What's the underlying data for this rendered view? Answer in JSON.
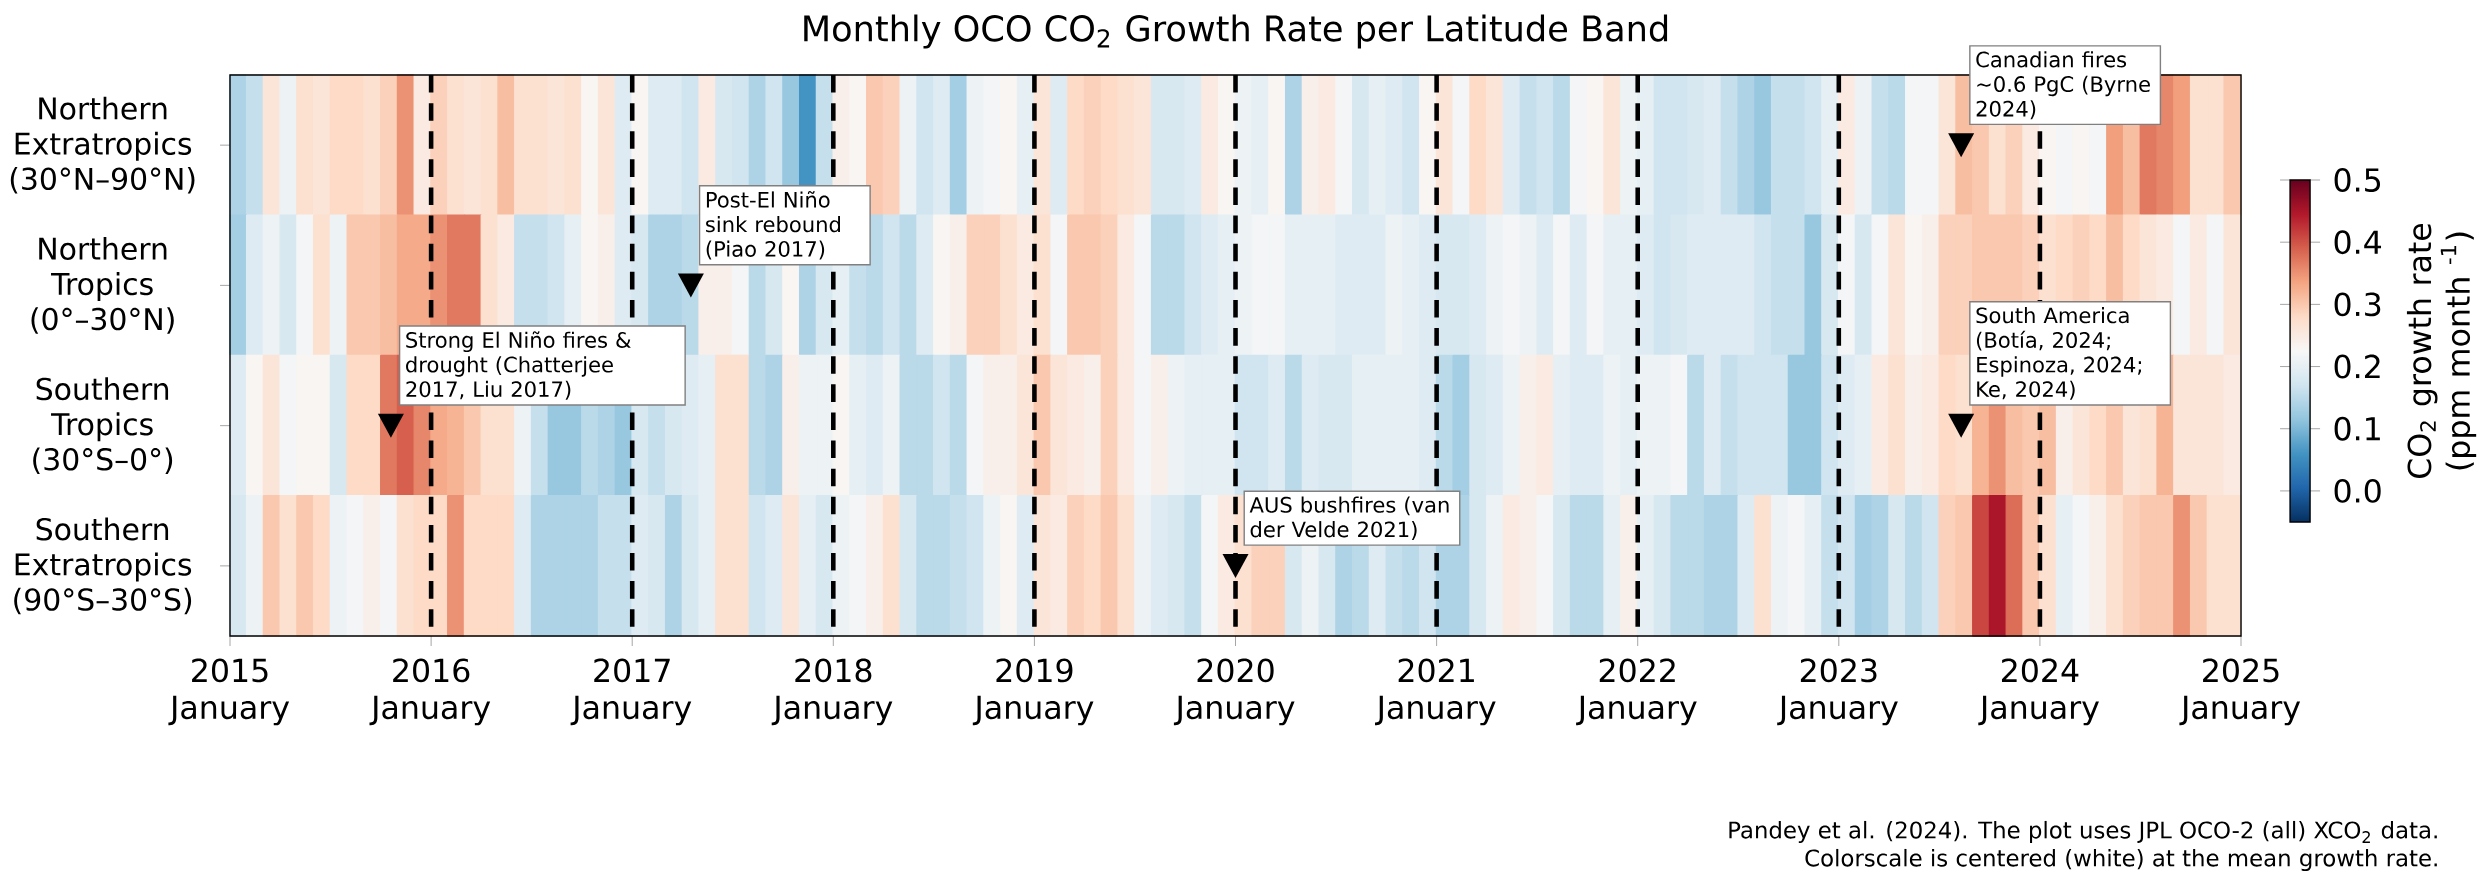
{
  "chart_data": {
    "type": "heatmap",
    "title": "Monthly OCO CO$_{2}$ Growth Rate per Latitude Band",
    "clabel": "CO$_{2}$ growth rate (ppm month $^{-1}$)",
    "x": [
      "2015-01-16",
      "2015-02-16",
      "2015-03-16",
      "2015-04-16",
      "2015-05-16",
      "2015-06-16",
      "2015-07-16",
      "2015-08-16",
      "2015-09-16",
      "2015-10-16",
      "2015-11-16",
      "2015-12-16",
      "2016-01-16",
      "2016-02-16",
      "2016-03-16",
      "2016-04-16",
      "2016-05-16",
      "2016-06-16",
      "2016-07-16",
      "2016-08-16",
      "2016-09-16",
      "2016-10-16",
      "2016-11-16",
      "2016-12-16",
      "2017-01-16",
      "2017-02-16",
      "2017-03-16",
      "2017-04-16",
      "2017-05-16",
      "2017-06-16",
      "2017-07-16",
      "2017-08-16",
      "2017-09-16",
      "2017-10-16",
      "2017-11-16",
      "2017-12-16",
      "2018-01-16",
      "2018-02-16",
      "2018-03-16",
      "2018-04-16",
      "2018-05-16",
      "2018-06-16",
      "2018-07-16",
      "2018-08-16",
      "2018-09-16",
      "2018-10-16",
      "2018-11-16",
      "2018-12-16",
      "2019-01-16",
      "2019-02-16",
      "2019-03-16",
      "2019-04-16",
      "2019-05-16",
      "2019-06-16",
      "2019-07-16",
      "2019-08-16",
      "2019-09-16",
      "2019-10-16",
      "2019-11-16",
      "2019-12-16",
      "2020-01-16",
      "2020-02-16",
      "2020-03-16",
      "2020-04-16",
      "2020-05-16",
      "2020-06-16",
      "2020-07-16",
      "2020-08-16",
      "2020-09-16",
      "2020-10-16",
      "2020-11-16",
      "2020-12-16",
      "2021-01-16",
      "2021-02-16",
      "2021-03-16",
      "2021-04-16",
      "2021-05-16",
      "2021-06-16",
      "2021-07-16",
      "2021-08-16",
      "2021-09-16",
      "2021-10-16",
      "2021-11-16",
      "2021-12-16",
      "2022-01-16",
      "2022-02-16",
      "2022-03-16",
      "2022-04-16",
      "2022-05-16",
      "2022-06-16",
      "2022-07-16",
      "2022-08-16",
      "2022-09-16",
      "2022-10-16",
      "2022-11-16",
      "2022-12-16",
      "2023-01-16",
      "2023-02-16",
      "2023-03-16",
      "2023-04-16",
      "2023-05-16",
      "2023-06-16",
      "2023-07-16",
      "2023-08-16",
      "2023-09-16",
      "2023-10-16",
      "2023-11-16",
      "2023-12-16",
      "2024-01-16",
      "2024-02-16",
      "2024-03-16",
      "2024-04-16",
      "2024-05-16",
      "2024-06-16",
      "2024-07-16",
      "2024-08-16",
      "2024-09-16",
      "2024-10-16",
      "2024-11-16",
      "2024-12-16"
    ],
    "y_categories": [
      "Northern Extratropics (30°N–90°N)",
      "Northern Tropics (0°–30°N)",
      "Southern Tropics (30°S–0°)",
      "Southern Extratropics (90°S–30°S)"
    ],
    "cells": [
      [
        0.14,
        0.16,
        0.26,
        0.21,
        0.27,
        0.26,
        0.28,
        0.28,
        0.27,
        0.29,
        0.35,
        0.25,
        0.29,
        0.27,
        0.26,
        0.27,
        0.31,
        0.27,
        0.27,
        0.26,
        0.27,
        0.23,
        0.26,
        0.19,
        0.23,
        0.19,
        0.19,
        0.17,
        0.25,
        0.18,
        0.17,
        0.14,
        0.17,
        0.12,
        0.06,
        0.16,
        0.24,
        0.23,
        0.3,
        0.29,
        0.21,
        0.17,
        0.19,
        0.13,
        0.21,
        0.22,
        0.23,
        0.2,
        0.26,
        0.19,
        0.28,
        0.29,
        0.28,
        0.27,
        0.26,
        0.18,
        0.18,
        0.19,
        0.25,
        0.23,
        0.21,
        0.2,
        0.23,
        0.14,
        0.24,
        0.25,
        0.22,
        0.18,
        0.2,
        0.19,
        0.17,
        0.23,
        0.26,
        0.22,
        0.28,
        0.26,
        0.19,
        0.16,
        0.17,
        0.15,
        0.22,
        0.23,
        0.26,
        0.21,
        0.2,
        0.17,
        0.17,
        0.18,
        0.19,
        0.16,
        0.14,
        0.12,
        0.16,
        0.16,
        0.17,
        0.2,
        0.25,
        0.21,
        0.16,
        0.15,
        0.22,
        0.22,
        0.26,
        0.31,
        0.3,
        0.27,
        0.29,
        0.25,
        0.23,
        0.22,
        0.23,
        0.22,
        0.34,
        0.31,
        0.37,
        0.36,
        0.34,
        0.27,
        0.27,
        0.3
      ],
      [
        0.13,
        0.19,
        0.21,
        0.18,
        0.22,
        0.27,
        0.21,
        0.3,
        0.3,
        0.31,
        0.33,
        0.33,
        0.35,
        0.37,
        0.37,
        0.27,
        0.25,
        0.16,
        0.16,
        0.17,
        0.2,
        0.23,
        0.24,
        0.19,
        0.18,
        0.14,
        0.14,
        0.15,
        0.24,
        0.24,
        0.22,
        0.15,
        0.18,
        0.23,
        0.14,
        0.18,
        0.2,
        0.16,
        0.15,
        0.17,
        0.15,
        0.19,
        0.23,
        0.24,
        0.29,
        0.29,
        0.27,
        0.25,
        0.27,
        0.22,
        0.3,
        0.3,
        0.29,
        0.25,
        0.22,
        0.15,
        0.15,
        0.17,
        0.19,
        0.2,
        0.21,
        0.22,
        0.22,
        0.2,
        0.2,
        0.2,
        0.19,
        0.19,
        0.19,
        0.21,
        0.2,
        0.19,
        0.18,
        0.18,
        0.19,
        0.21,
        0.22,
        0.21,
        0.19,
        0.22,
        0.19,
        0.22,
        0.2,
        0.2,
        0.19,
        0.17,
        0.18,
        0.19,
        0.19,
        0.19,
        0.19,
        0.17,
        0.16,
        0.16,
        0.12,
        0.18,
        0.22,
        0.18,
        0.22,
        0.26,
        0.23,
        0.24,
        0.29,
        0.29,
        0.3,
        0.3,
        0.3,
        0.29,
        0.27,
        0.28,
        0.29,
        0.28,
        0.31,
        0.28,
        0.26,
        0.25,
        0.22,
        0.25,
        0.22,
        0.26
      ],
      [
        0.19,
        0.23,
        0.26,
        0.22,
        0.23,
        0.23,
        0.18,
        0.28,
        0.28,
        0.37,
        0.39,
        0.36,
        0.33,
        0.32,
        0.3,
        0.27,
        0.27,
        0.21,
        0.16,
        0.12,
        0.12,
        0.15,
        0.14,
        0.12,
        0.18,
        0.16,
        0.18,
        0.19,
        0.2,
        0.27,
        0.27,
        0.15,
        0.14,
        0.24,
        0.21,
        0.21,
        0.23,
        0.2,
        0.19,
        0.21,
        0.15,
        0.15,
        0.17,
        0.15,
        0.22,
        0.24,
        0.24,
        0.26,
        0.3,
        0.26,
        0.25,
        0.24,
        0.29,
        0.25,
        0.22,
        0.24,
        0.21,
        0.2,
        0.2,
        0.2,
        0.17,
        0.17,
        0.19,
        0.15,
        0.19,
        0.18,
        0.18,
        0.2,
        0.2,
        0.2,
        0.2,
        0.19,
        0.15,
        0.13,
        0.18,
        0.19,
        0.21,
        0.24,
        0.25,
        0.2,
        0.19,
        0.19,
        0.21,
        0.2,
        0.21,
        0.21,
        0.22,
        0.15,
        0.19,
        0.16,
        0.17,
        0.17,
        0.17,
        0.12,
        0.12,
        0.17,
        0.19,
        0.2,
        0.25,
        0.27,
        0.24,
        0.25,
        0.28,
        0.27,
        0.32,
        0.35,
        0.31,
        0.3,
        0.31,
        0.24,
        0.26,
        0.28,
        0.3,
        0.26,
        0.27,
        0.32,
        0.26,
        0.26,
        0.26,
        0.25
      ],
      [
        0.18,
        0.21,
        0.3,
        0.27,
        0.3,
        0.28,
        0.21,
        0.22,
        0.24,
        0.22,
        0.27,
        0.28,
        0.28,
        0.35,
        0.28,
        0.28,
        0.28,
        0.19,
        0.14,
        0.14,
        0.14,
        0.14,
        0.16,
        0.16,
        0.19,
        0.18,
        0.14,
        0.18,
        0.2,
        0.27,
        0.27,
        0.17,
        0.19,
        0.26,
        0.2,
        0.18,
        0.21,
        0.22,
        0.24,
        0.27,
        0.18,
        0.15,
        0.15,
        0.16,
        0.17,
        0.21,
        0.23,
        0.19,
        0.26,
        0.25,
        0.29,
        0.28,
        0.3,
        0.27,
        0.21,
        0.19,
        0.18,
        0.16,
        0.22,
        0.25,
        0.27,
        0.29,
        0.29,
        0.18,
        0.21,
        0.18,
        0.14,
        0.15,
        0.19,
        0.16,
        0.15,
        0.17,
        0.14,
        0.14,
        0.18,
        0.21,
        0.25,
        0.24,
        0.22,
        0.18,
        0.15,
        0.15,
        0.2,
        0.24,
        0.2,
        0.18,
        0.15,
        0.15,
        0.14,
        0.14,
        0.19,
        0.27,
        0.21,
        0.22,
        0.2,
        0.16,
        0.17,
        0.13,
        0.14,
        0.18,
        0.15,
        0.17,
        0.29,
        0.3,
        0.41,
        0.45,
        0.38,
        0.3,
        0.27,
        0.2,
        0.22,
        0.24,
        0.27,
        0.29,
        0.3,
        0.3,
        0.35,
        0.3,
        0.27,
        0.27
      ]
    ],
    "clim": [
      -0.05,
      0.5
    ],
    "cticks": [
      {
        "value": 0,
        "label": "0.0"
      },
      0.1,
      0.2,
      0.3,
      0.4,
      0.5
    ],
    "xlim": [
      "2015-01",
      "2025-01"
    ],
    "xticks": [
      {
        "value": "2015-01",
        "label": "2015 January"
      },
      {
        "value": "2016-01",
        "label": "2016 January"
      },
      {
        "value": "2017-01",
        "label": "2017 January"
      },
      {
        "value": "2018-01",
        "label": "2018 January"
      },
      {
        "value": "2019-01",
        "label": "2019 January"
      },
      {
        "value": "2020-01",
        "label": "2020 January"
      },
      {
        "value": "2021-01",
        "label": "2021 January"
      },
      {
        "value": "2022-01",
        "label": "2022 January"
      },
      {
        "value": "2023-01",
        "label": "2023 January"
      },
      {
        "value": "2024-01",
        "label": "2024 January"
      },
      {
        "value": "2025-01",
        "label": "2025 January"
      }
    ],
    "ref_lines": [
      {
        "axis": "x",
        "value": "2016-01",
        "line_style": "dashed"
      },
      {
        "axis": "x",
        "value": "2017-01",
        "line_style": "dashed"
      },
      {
        "axis": "x",
        "value": "2018-01",
        "line_style": "dashed"
      },
      {
        "axis": "x",
        "value": "2019-01",
        "line_style": "dashed"
      },
      {
        "axis": "x",
        "value": "2020-01",
        "line_style": "dashed"
      },
      {
        "axis": "x",
        "value": "2021-01",
        "line_style": "dashed"
      },
      {
        "axis": "x",
        "value": "2022-01",
        "line_style": "dashed"
      },
      {
        "axis": "x",
        "value": "2023-01",
        "line_style": "dashed"
      },
      {
        "axis": "x",
        "value": "2024-01",
        "line_style": "dashed"
      }
    ],
    "annotations": [
      "Strong El Niño fires & drought (Chatterjee 2017, Liu 2017)",
      "Post-El Niño sink rebound (Piao 2017)",
      {
        "text": "AUS bushfires (van der Velde 2021)",
        "x": "2020-01-01",
        "y": "Southern Extratropics (90°S–30°S)"
      },
      "Canadian fires ~0.6 PgC (Byrne 2024)",
      "South America (Botía, 2024; Espinoza, 2024; Ke, 2024)",
      "Pandey et al. (2024). The plot uses JPL OCO-2 (all) XCO$_{2}$ data.",
      "Colorscale is centered (white) at the mean growth rate."
    ]
  }
}
